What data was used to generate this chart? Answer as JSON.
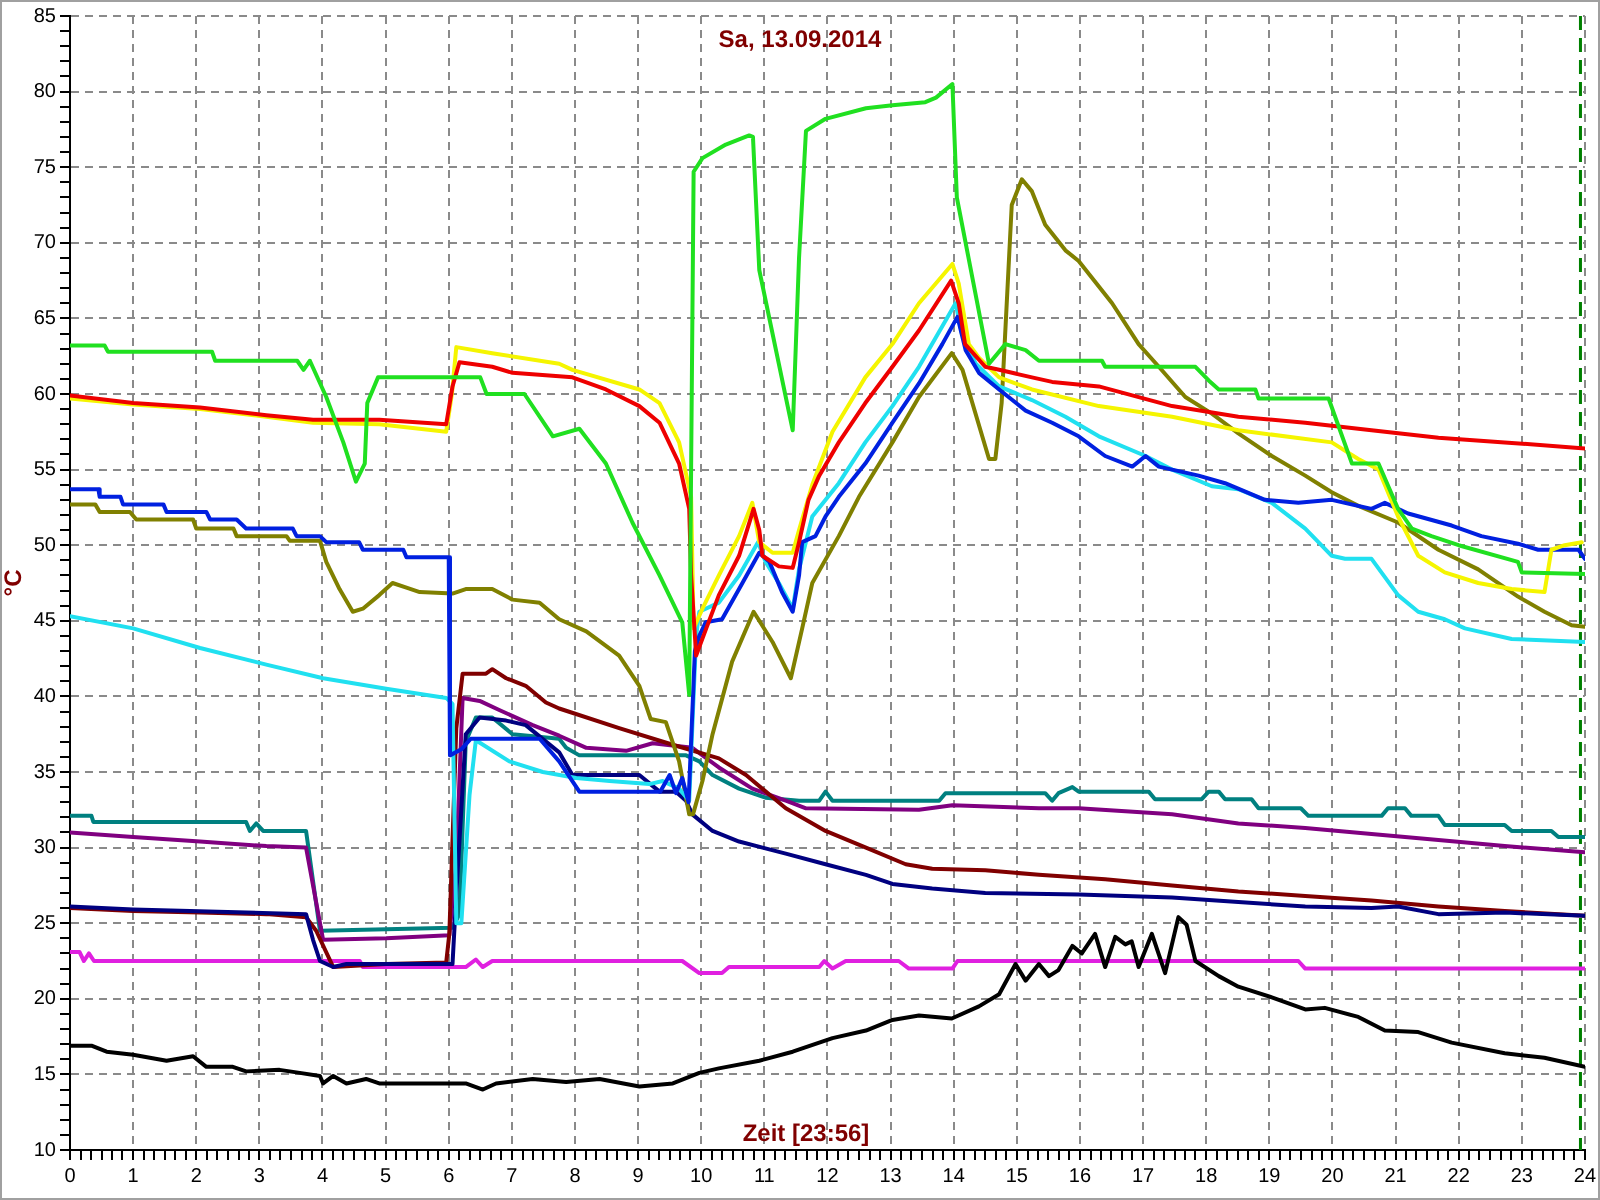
{
  "chart_data": {
    "type": "line",
    "title": "Sa, 13.09.2014",
    "xlabel": "Zeit [23:56]",
    "ylabel": "°C",
    "xlim": [
      0,
      24
    ],
    "ylim": [
      10,
      85
    ],
    "grid": true,
    "xticks": [
      0,
      {
        "value": 0.17,
        "label": null
      },
      {
        "value": 0.33,
        "label": null
      },
      {
        "value": 0.5,
        "label": null
      },
      {
        "value": 0.67,
        "label": null
      },
      {
        "value": 0.83,
        "label": null
      },
      1,
      {
        "value": 1.17,
        "label": null
      },
      {
        "value": 1.33,
        "label": null
      },
      {
        "value": 1.5,
        "label": null
      },
      {
        "value": 1.67,
        "label": null
      },
      {
        "value": 1.83,
        "label": null
      },
      2,
      {
        "value": 2.17,
        "label": null
      },
      {
        "value": 2.33,
        "label": null
      },
      {
        "value": 2.5,
        "label": null
      },
      {
        "value": 2.67,
        "label": null
      },
      {
        "value": 2.83,
        "label": null
      },
      3,
      {
        "value": 3.17,
        "label": null
      },
      {
        "value": 3.33,
        "label": null
      },
      {
        "value": 3.5,
        "label": null
      },
      {
        "value": 3.67,
        "label": null
      },
      {
        "value": 3.83,
        "label": null
      },
      4,
      {
        "value": 4.17,
        "label": null
      },
      {
        "value": 4.33,
        "label": null
      },
      {
        "value": 4.5,
        "label": null
      },
      {
        "value": 4.67,
        "label": null
      },
      {
        "value": 4.83,
        "label": null
      },
      5,
      {
        "value": 5.17,
        "label": null
      },
      {
        "value": 5.33,
        "label": null
      },
      {
        "value": 5.5,
        "label": null
      },
      {
        "value": 5.67,
        "label": null
      },
      {
        "value": 5.83,
        "label": null
      },
      6,
      {
        "value": 6.17,
        "label": null
      },
      {
        "value": 6.33,
        "label": null
      },
      {
        "value": 6.5,
        "label": null
      },
      {
        "value": 6.67,
        "label": null
      },
      {
        "value": 6.83,
        "label": null
      },
      7,
      {
        "value": 7.17,
        "label": null
      },
      {
        "value": 7.33,
        "label": null
      },
      {
        "value": 7.5,
        "label": null
      },
      {
        "value": 7.67,
        "label": null
      },
      {
        "value": 7.83,
        "label": null
      },
      8,
      {
        "value": 8.17,
        "label": null
      },
      {
        "value": 8.33,
        "label": null
      },
      {
        "value": 8.5,
        "label": null
      },
      {
        "value": 8.67,
        "label": null
      },
      {
        "value": 8.83,
        "label": null
      },
      9,
      {
        "value": 9.17,
        "label": null
      },
      {
        "value": 9.33,
        "label": null
      },
      {
        "value": 9.5,
        "label": null
      },
      {
        "value": 9.67,
        "label": null
      },
      {
        "value": 9.83,
        "label": null
      },
      10,
      {
        "value": 10.17,
        "label": null
      },
      {
        "value": 10.33,
        "label": null
      },
      {
        "value": 10.5,
        "label": null
      },
      {
        "value": 10.67,
        "label": null
      },
      {
        "value": 10.83,
        "label": null
      },
      11,
      {
        "value": 11.17,
        "label": null
      },
      {
        "value": 11.33,
        "label": null
      },
      {
        "value": 11.5,
        "label": null
      },
      {
        "value": 11.67,
        "label": null
      },
      {
        "value": 11.83,
        "label": null
      },
      12,
      {
        "value": 12.17,
        "label": null
      },
      {
        "value": 12.33,
        "label": null
      },
      {
        "value": 12.5,
        "label": null
      },
      {
        "value": 12.67,
        "label": null
      },
      {
        "value": 12.83,
        "label": null
      },
      13,
      {
        "value": 13.17,
        "label": null
      },
      {
        "value": 13.33,
        "label": null
      },
      {
        "value": 13.5,
        "label": null
      },
      {
        "value": 13.67,
        "label": null
      },
      {
        "value": 13.83,
        "label": null
      },
      14,
      {
        "value": 14.17,
        "label": null
      },
      {
        "value": 14.33,
        "label": null
      },
      {
        "value": 14.5,
        "label": null
      },
      {
        "value": 14.67,
        "label": null
      },
      {
        "value": 14.83,
        "label": null
      },
      15,
      {
        "value": 15.17,
        "label": null
      },
      {
        "value": 15.33,
        "label": null
      },
      {
        "value": 15.5,
        "label": null
      },
      {
        "value": 15.67,
        "label": null
      },
      {
        "value": 15.83,
        "label": null
      },
      16,
      {
        "value": 16.17,
        "label": null
      },
      {
        "value": 16.33,
        "label": null
      },
      {
        "value": 16.5,
        "label": null
      },
      {
        "value": 16.67,
        "label": null
      },
      {
        "value": 16.83,
        "label": null
      },
      17,
      {
        "value": 17.17,
        "label": null
      },
      {
        "value": 17.33,
        "label": null
      },
      {
        "value": 17.5,
        "label": null
      },
      {
        "value": 17.67,
        "label": null
      },
      {
        "value": 17.83,
        "label": null
      },
      18,
      {
        "value": 18.17,
        "label": null
      },
      {
        "value": 18.33,
        "label": null
      },
      {
        "value": 18.5,
        "label": null
      },
      {
        "value": 18.67,
        "label": null
      },
      {
        "value": 18.83,
        "label": null
      },
      19,
      {
        "value": 19.17,
        "label": null
      },
      {
        "value": 19.33,
        "label": null
      },
      {
        "value": 19.5,
        "label": null
      },
      {
        "value": 19.67,
        "label": null
      },
      {
        "value": 19.83,
        "label": null
      },
      20,
      {
        "value": 20.17,
        "label": null
      },
      {
        "value": 20.33,
        "label": null
      },
      {
        "value": 20.5,
        "label": null
      },
      {
        "value": 20.67,
        "label": null
      },
      {
        "value": 20.83,
        "label": null
      },
      21,
      {
        "value": 21.17,
        "label": null
      },
      {
        "value": 21.33,
        "label": null
      },
      {
        "value": 21.5,
        "label": null
      },
      {
        "value": 21.67,
        "label": null
      },
      {
        "value": 21.83,
        "label": null
      },
      22,
      {
        "value": 22.17,
        "label": null
      },
      {
        "value": 22.33,
        "label": null
      },
      {
        "value": 22.5,
        "label": null
      },
      {
        "value": 22.67,
        "label": null
      },
      {
        "value": 22.83,
        "label": null
      },
      23,
      {
        "value": 23.17,
        "label": null
      },
      {
        "value": 23.33,
        "label": null
      },
      {
        "value": 23.5,
        "label": null
      },
      {
        "value": 23.67,
        "label": null
      },
      {
        "value": 23.83,
        "label": null
      },
      24
    ],
    "yticks": [
      10,
      {
        "value": 11,
        "label": null
      },
      {
        "value": 12,
        "label": null
      },
      {
        "value": 13,
        "label": null
      },
      {
        "value": 14,
        "label": null
      },
      15,
      {
        "value": 16,
        "label": null
      },
      {
        "value": 17,
        "label": null
      },
      {
        "value": 18,
        "label": null
      },
      {
        "value": 19,
        "label": null
      },
      20,
      {
        "value": 21,
        "label": null
      },
      {
        "value": 22,
        "label": null
      },
      {
        "value": 23,
        "label": null
      },
      {
        "value": 24,
        "label": null
      },
      25,
      {
        "value": 26,
        "label": null
      },
      {
        "value": 27,
        "label": null
      },
      {
        "value": 28,
        "label": null
      },
      {
        "value": 29,
        "label": null
      },
      30,
      {
        "value": 31,
        "label": null
      },
      {
        "value": 32,
        "label": null
      },
      {
        "value": 33,
        "label": null
      },
      {
        "value": 34,
        "label": null
      },
      35,
      {
        "value": 36,
        "label": null
      },
      {
        "value": 37,
        "label": null
      },
      {
        "value": 38,
        "label": null
      },
      {
        "value": 39,
        "label": null
      },
      40,
      {
        "value": 41,
        "label": null
      },
      {
        "value": 42,
        "label": null
      },
      {
        "value": 43,
        "label": null
      },
      {
        "value": 44,
        "label": null
      },
      45,
      {
        "value": 46,
        "label": null
      },
      {
        "value": 47,
        "label": null
      },
      {
        "value": 48,
        "label": null
      },
      {
        "value": 49,
        "label": null
      },
      50,
      {
        "value": 51,
        "label": null
      },
      {
        "value": 52,
        "label": null
      },
      {
        "value": 53,
        "label": null
      },
      {
        "value": 54,
        "label": null
      },
      55,
      {
        "value": 56,
        "label": null
      },
      {
        "value": 57,
        "label": null
      },
      {
        "value": 58,
        "label": null
      },
      {
        "value": 59,
        "label": null
      },
      60,
      {
        "value": 61,
        "label": null
      },
      {
        "value": 62,
        "label": null
      },
      {
        "value": 63,
        "label": null
      },
      {
        "value": 64,
        "label": null
      },
      65,
      {
        "value": 66,
        "label": null
      },
      {
        "value": 67,
        "label": null
      },
      {
        "value": 68,
        "label": null
      },
      {
        "value": 69,
        "label": null
      },
      70,
      {
        "value": 71,
        "label": null
      },
      {
        "value": 72,
        "label": null
      },
      {
        "value": 73,
        "label": null
      },
      {
        "value": 74,
        "label": null
      },
      75,
      {
        "value": 76,
        "label": null
      },
      {
        "value": 77,
        "label": null
      },
      {
        "value": 78,
        "label": null
      },
      {
        "value": 79,
        "label": null
      },
      80,
      {
        "value": 81,
        "label": null
      },
      {
        "value": 82,
        "label": null
      },
      {
        "value": 83,
        "label": null
      },
      {
        "value": 84,
        "label": null
      },
      85
    ],
    "ref_lines": [
      {
        "axis": "x",
        "value": 23.93,
        "color": "#008000",
        "line_style": "dashed"
      }
    ],
    "series": [
      {
        "color": "#000000",
        "x": [
          0,
          0.34,
          0.58,
          1.0,
          1.53,
          1.95,
          2.16,
          2.58,
          2.79,
          3.32,
          3.64,
          3.96,
          4.01,
          4.17,
          4.38,
          4.69,
          4.9,
          6.27,
          6.54,
          6.75,
          7.33,
          7.86,
          8.39,
          9.02,
          9.55,
          9.97,
          10.28,
          10.92,
          11.45,
          12.08,
          12.61,
          13.03,
          13.45,
          13.97,
          14.4,
          14.72,
          14.98,
          15.14,
          15.35,
          15.51,
          15.66,
          15.88,
          16.03,
          16.24,
          16.4,
          16.56,
          16.72,
          16.82,
          16.93,
          17.14,
          17.35,
          17.56,
          17.69,
          17.83,
          18.2,
          18.51,
          19.04,
          19.57,
          19.88,
          20.41,
          20.83,
          21.36,
          21.89,
          22.73,
          23.36,
          24
        ],
        "values": [
          16.9,
          16.9,
          16.5,
          16.3,
          15.9,
          16.2,
          15.5,
          15.5,
          15.2,
          15.3,
          15.1,
          14.9,
          14.4,
          14.9,
          14.4,
          14.7,
          14.4,
          14.4,
          14.0,
          14.4,
          14.7,
          14.5,
          14.7,
          14.2,
          14.4,
          15.1,
          15.4,
          15.9,
          16.5,
          17.4,
          17.9,
          18.6,
          18.9,
          18.7,
          19.5,
          20.3,
          22.3,
          21.2,
          22.3,
          21.5,
          21.9,
          23.5,
          23.0,
          24.3,
          22.1,
          24.1,
          23.6,
          23.8,
          22.1,
          24.3,
          21.7,
          25.4,
          24.9,
          22.5,
          21.5,
          20.8,
          20.1,
          19.3,
          19.4,
          18.8,
          17.9,
          17.8,
          17.1,
          16.4,
          16.1,
          15.5
        ]
      },
      {
        "color": "#20e020",
        "x": [
          0,
          0.55,
          0.6,
          2.25,
          2.3,
          3.6,
          3.7,
          3.8,
          4.06,
          4.33,
          4.53,
          4.67,
          4.71,
          4.88,
          6.0,
          6.5,
          6.6,
          7.2,
          7.65,
          8.07,
          8.49,
          8.91,
          9.34,
          9.7,
          9.81,
          9.88,
          10.02,
          10.39,
          10.76,
          10.82,
          10.92,
          11.45,
          11.55,
          11.66,
          11.97,
          12.61,
          13.03,
          13.55,
          13.72,
          13.98,
          14.05,
          14.56,
          14.82,
          15.14,
          15.35,
          16.35,
          16.4,
          17.83,
          18.04,
          18.2,
          18.78,
          18.83,
          19.94,
          20.31,
          20.73,
          21.04,
          21.26,
          21.57,
          22.0,
          22.94,
          23.0,
          24
        ],
        "values": [
          63.2,
          63.2,
          62.8,
          62.8,
          62.2,
          62.2,
          61.6,
          62.2,
          59.8,
          56.8,
          54.2,
          55.4,
          59.4,
          61.1,
          61.1,
          61.1,
          60.0,
          60.0,
          57.2,
          57.7,
          55.4,
          51.5,
          48.0,
          44.9,
          40.1,
          74.7,
          75.6,
          76.5,
          77.1,
          77.0,
          68.2,
          57.6,
          69.0,
          77.4,
          78.2,
          78.9,
          79.1,
          79.3,
          79.6,
          80.5,
          73.0,
          62.0,
          63.3,
          62.9,
          62.2,
          62.2,
          61.8,
          61.8,
          60.9,
          60.3,
          60.3,
          59.7,
          59.7,
          55.4,
          55.4,
          52.4,
          51.1,
          50.6,
          50.0,
          48.9,
          48.2,
          48.1
        ]
      },
      {
        "color": "#ee0000",
        "x": [
          0,
          1.0,
          2.06,
          3.11,
          3.85,
          4.9,
          5.96,
          6.06,
          6.17,
          6.69,
          7.01,
          7.96,
          8.49,
          9.02,
          9.34,
          9.65,
          9.81,
          9.84,
          9.92,
          10.08,
          10.28,
          10.6,
          10.83,
          10.92,
          10.97,
          11.23,
          11.45,
          11.55,
          11.7,
          11.87,
          12.18,
          12.6,
          13.03,
          13.45,
          13.96,
          14.08,
          14.18,
          14.5,
          14.72,
          15.24,
          15.56,
          16.3,
          17.46,
          18.51,
          19.57,
          20.62,
          21.68,
          22.73,
          24
        ],
        "values": [
          59.9,
          59.4,
          59.1,
          58.6,
          58.3,
          58.3,
          58.0,
          60.5,
          62.1,
          61.8,
          61.4,
          61.1,
          60.3,
          59.2,
          58.1,
          55.4,
          52.4,
          48.0,
          42.7,
          44.5,
          46.7,
          49.3,
          52.4,
          51.0,
          49.3,
          48.6,
          48.5,
          50.2,
          53.0,
          54.6,
          56.8,
          59.4,
          61.8,
          64.2,
          67.5,
          66.0,
          63.3,
          61.8,
          61.6,
          61.1,
          60.8,
          60.5,
          59.2,
          58.5,
          58.1,
          57.6,
          57.1,
          56.8,
          56.4
        ]
      },
      {
        "color": "#f5f500",
        "x": [
          0,
          1.0,
          2.06,
          3.11,
          3.85,
          4.9,
          5.96,
          6.05,
          6.12,
          6.69,
          7.75,
          7.96,
          9.02,
          9.34,
          9.65,
          9.84,
          9.88,
          10.02,
          10.28,
          10.6,
          10.81,
          10.92,
          11.13,
          11.45,
          11.55,
          11.76,
          12.08,
          12.6,
          13.03,
          13.45,
          13.98,
          14.08,
          14.24,
          14.4,
          14.72,
          15.24,
          16.3,
          17.46,
          18.51,
          19.99,
          20.41,
          20.73,
          21.04,
          21.36,
          21.78,
          22.31,
          22.84,
          23.36,
          23.47,
          23.68,
          23.95
        ],
        "values": [
          59.7,
          59.3,
          59.0,
          58.5,
          58.1,
          58.0,
          57.5,
          60.0,
          63.1,
          62.7,
          62.0,
          61.6,
          60.3,
          59.4,
          56.8,
          53.2,
          44.5,
          45.8,
          48.0,
          50.6,
          52.8,
          50.2,
          49.5,
          49.5,
          51.0,
          54.0,
          57.5,
          61.1,
          63.3,
          66.0,
          68.6,
          67.3,
          63.3,
          62.4,
          61.1,
          60.3,
          59.2,
          58.5,
          57.6,
          56.8,
          55.7,
          55.0,
          51.9,
          49.3,
          48.2,
          47.5,
          47.1,
          46.9,
          49.7,
          50.0,
          50.2
        ]
      },
      {
        "color": "#0020e0",
        "x": [
          0,
          0.45,
          0.47,
          0.8,
          0.84,
          1.48,
          1.53,
          2.16,
          2.22,
          2.64,
          2.79,
          3.53,
          3.59,
          3.96,
          4.06,
          4.58,
          4.64,
          5.28,
          5.33,
          6.0,
          6.02,
          6.2,
          6.35,
          7.44,
          7.75,
          8.07,
          9.35,
          9.5,
          9.6,
          9.7,
          9.8,
          9.9,
          9.97,
          10.07,
          10.33,
          10.6,
          10.92,
          11.08,
          11.28,
          11.45,
          11.55,
          11.6,
          11.81,
          11.97,
          12.18,
          12.6,
          13.03,
          13.45,
          13.82,
          14.06,
          14.19,
          14.4,
          14.72,
          15.14,
          15.56,
          15.98,
          16.4,
          16.83,
          17.04,
          17.25,
          17.88,
          18.3,
          18.93,
          19.46,
          19.99,
          20.62,
          20.83,
          21.2,
          21.89,
          22.36,
          22.94,
          23.26,
          23.9,
          24
        ],
        "values": [
          53.7,
          53.7,
          53.2,
          53.2,
          52.7,
          52.7,
          52.2,
          52.2,
          51.7,
          51.7,
          51.1,
          51.1,
          50.6,
          50.6,
          50.2,
          50.2,
          49.7,
          49.7,
          49.2,
          49.2,
          36.1,
          36.5,
          37.2,
          37.2,
          35.7,
          33.7,
          33.7,
          34.8,
          33.6,
          34.6,
          33.0,
          43.0,
          44.0,
          44.9,
          45.1,
          47.1,
          49.5,
          48.9,
          46.9,
          45.6,
          48.0,
          50.2,
          50.6,
          51.9,
          53.2,
          55.4,
          58.1,
          60.7,
          63.3,
          65.1,
          62.9,
          61.4,
          60.3,
          58.9,
          58.1,
          57.2,
          55.9,
          55.2,
          55.9,
          55.2,
          54.6,
          54.1,
          53.0,
          52.8,
          53.0,
          52.4,
          52.8,
          52.1,
          51.3,
          50.6,
          50.1,
          49.7,
          49.7,
          49.1
        ]
      },
      {
        "color": "#20e0f0",
        "x": [
          0,
          1.0,
          2.06,
          3.11,
          4.01,
          5.01,
          5.96,
          6.06,
          6.12,
          6.2,
          6.33,
          6.43,
          6.96,
          7.49,
          8.02,
          8.55,
          9.18,
          9.39,
          9.65,
          9.81,
          9.92,
          9.97,
          10.28,
          10.6,
          10.9,
          11.02,
          11.23,
          11.45,
          11.55,
          11.76,
          12.18,
          12.6,
          13.03,
          13.45,
          14.03,
          14.13,
          14.35,
          14.72,
          15.24,
          15.77,
          16.3,
          17.04,
          17.46,
          18.09,
          18.51,
          19.04,
          19.57,
          19.99,
          20.2,
          20.62,
          21.04,
          21.36,
          21.78,
          22.1,
          22.84,
          24
        ],
        "values": [
          45.3,
          44.5,
          43.2,
          42.1,
          41.2,
          40.5,
          39.9,
          39.5,
          25.0,
          25.0,
          33.5,
          37.1,
          35.7,
          35.0,
          34.6,
          34.4,
          34.2,
          34.4,
          33.9,
          33.1,
          44.0,
          45.6,
          46.2,
          48.0,
          50.2,
          48.9,
          47.5,
          45.8,
          48.4,
          51.9,
          54.1,
          56.8,
          59.2,
          61.8,
          66.0,
          64.0,
          62.0,
          60.5,
          59.6,
          58.5,
          57.2,
          55.9,
          55.0,
          53.9,
          53.7,
          52.8,
          51.1,
          49.3,
          49.1,
          49.1,
          46.7,
          45.6,
          45.1,
          44.5,
          43.8,
          43.6
        ]
      },
      {
        "color": "#808000",
        "x": [
          0,
          0.4,
          0.47,
          0.95,
          1.05,
          1.95,
          2.0,
          2.59,
          2.64,
          3.43,
          3.48,
          3.96,
          4.06,
          4.27,
          4.48,
          4.64,
          4.9,
          5.11,
          5.33,
          5.54,
          6.06,
          6.27,
          6.69,
          7.01,
          7.44,
          7.75,
          8.18,
          8.7,
          9.02,
          9.2,
          9.44,
          9.65,
          9.81,
          9.87,
          10.02,
          10.18,
          10.49,
          10.83,
          11.13,
          11.42,
          11.6,
          11.76,
          12.18,
          12.5,
          13.03,
          13.45,
          13.97,
          14.14,
          14.56,
          14.66,
          14.76,
          14.92,
          15.08,
          15.24,
          15.45,
          15.77,
          15.98,
          16.51,
          16.93,
          17.25,
          17.67,
          18.09,
          18.51,
          19.04,
          19.57,
          19.99,
          20.41,
          21.04,
          21.68,
          22.31,
          22.94,
          23.36,
          23.79,
          24
        ],
        "values": [
          52.7,
          52.7,
          52.2,
          52.2,
          51.7,
          51.7,
          51.1,
          51.1,
          50.6,
          50.6,
          50.3,
          50.3,
          48.9,
          47.1,
          45.6,
          45.8,
          46.7,
          47.5,
          47.2,
          46.9,
          46.8,
          47.1,
          47.1,
          46.4,
          46.2,
          45.1,
          44.3,
          42.7,
          40.7,
          38.5,
          38.3,
          35.7,
          32.2,
          32.2,
          34.4,
          37.5,
          42.3,
          45.6,
          43.6,
          41.2,
          44.5,
          47.5,
          50.6,
          53.2,
          56.8,
          59.8,
          62.7,
          61.6,
          55.7,
          55.7,
          59.4,
          72.5,
          74.2,
          73.4,
          71.2,
          69.5,
          68.8,
          66.0,
          63.3,
          61.8,
          59.8,
          58.7,
          57.4,
          55.9,
          54.6,
          53.5,
          52.6,
          51.5,
          49.7,
          48.4,
          46.6,
          45.6,
          44.7,
          44.6
        ]
      },
      {
        "color": "#000080",
        "x": [
          0,
          1.0,
          3.74,
          3.85,
          3.96,
          4.17,
          4.38,
          6.06,
          6.12,
          6.27,
          6.49,
          6.91,
          7.22,
          7.75,
          7.96,
          9.02,
          9.34,
          9.6,
          9.76,
          9.86,
          10.18,
          10.6,
          11.34,
          11.97,
          12.61,
          13.03,
          13.66,
          14.5,
          15.98,
          17.46,
          18.51,
          19.57,
          20.62,
          21.04,
          21.68,
          22.73,
          24
        ],
        "values": [
          26.1,
          25.9,
          25.6,
          23.9,
          22.5,
          22.1,
          22.3,
          22.3,
          26.9,
          37.5,
          38.6,
          38.4,
          38.1,
          36.3,
          34.8,
          34.8,
          33.7,
          33.7,
          33.1,
          32.2,
          31.1,
          30.4,
          29.6,
          28.9,
          28.2,
          27.6,
          27.3,
          27.0,
          26.9,
          26.7,
          26.4,
          26.1,
          26.0,
          26.1,
          25.6,
          25.7,
          25.5
        ]
      },
      {
        "color": "#800000",
        "x": [
          0,
          1.0,
          2.06,
          3.11,
          3.74,
          3.9,
          4.17,
          5.01,
          5.96,
          6.01,
          6.12,
          6.22,
          6.59,
          6.69,
          6.91,
          7.22,
          7.54,
          7.75,
          8.7,
          9.55,
          10.28,
          10.71,
          11.34,
          11.97,
          12.61,
          13.24,
          13.66,
          14.5,
          15.35,
          16.4,
          17.46,
          18.51,
          19.57,
          20.62,
          21.68,
          22.73,
          24
        ],
        "values": [
          26.0,
          25.8,
          25.7,
          25.6,
          25.4,
          24.5,
          22.1,
          22.3,
          22.4,
          24.3,
          37.9,
          41.5,
          41.5,
          41.8,
          41.2,
          40.7,
          39.6,
          39.2,
          37.9,
          36.8,
          35.9,
          34.8,
          32.6,
          31.1,
          30.0,
          28.9,
          28.6,
          28.5,
          28.2,
          27.9,
          27.5,
          27.1,
          26.8,
          26.5,
          26.1,
          25.8,
          25.5
        ]
      },
      {
        "color": "#800080",
        "x": [
          0,
          1.0,
          2.06,
          3.11,
          3.74,
          4.01,
          5.01,
          6.01,
          6.12,
          6.22,
          6.49,
          6.8,
          7.33,
          7.75,
          8.18,
          8.81,
          9.23,
          9.86,
          10.28,
          10.81,
          11.34,
          11.66,
          13.45,
          13.98,
          15.35,
          15.98,
          17.46,
          18.51,
          19.57,
          20.62,
          21.68,
          22.73,
          24
        ],
        "values": [
          31.0,
          30.7,
          30.4,
          30.1,
          30.0,
          23.9,
          24.0,
          24.2,
          29.1,
          39.9,
          39.7,
          39.1,
          38.1,
          37.4,
          36.6,
          36.4,
          36.9,
          36.6,
          35.3,
          33.9,
          33.1,
          32.6,
          32.5,
          32.8,
          32.6,
          32.6,
          32.2,
          31.6,
          31.3,
          30.9,
          30.5,
          30.1,
          29.7
        ]
      },
      {
        "color": "#008080",
        "x": [
          0,
          0.34,
          0.37,
          2.79,
          2.85,
          2.95,
          3.06,
          3.74,
          3.96,
          6.06,
          6.17,
          6.27,
          6.43,
          6.69,
          7.01,
          7.75,
          7.86,
          8.07,
          9.76,
          9.97,
          10.18,
          10.6,
          11.02,
          11.55,
          11.87,
          11.97,
          12.08,
          13.77,
          13.87,
          15.45,
          15.56,
          15.66,
          15.88,
          15.98,
          17.09,
          17.19,
          17.93,
          18.04,
          18.2,
          18.3,
          18.72,
          18.83,
          19.5,
          19.62,
          20.78,
          20.88,
          21.15,
          21.25,
          21.68,
          21.78,
          22.73,
          22.84,
          23.47,
          23.58,
          24
        ],
        "values": [
          32.1,
          32.1,
          31.7,
          31.7,
          31.1,
          31.6,
          31.1,
          31.1,
          24.5,
          24.7,
          25.6,
          37.0,
          38.6,
          38.6,
          37.5,
          37.2,
          36.6,
          36.1,
          36.1,
          35.7,
          34.8,
          33.9,
          33.3,
          33.1,
          33.1,
          33.7,
          33.1,
          33.1,
          33.6,
          33.6,
          33.1,
          33.6,
          34.0,
          33.7,
          33.7,
          33.2,
          33.2,
          33.7,
          33.7,
          33.2,
          33.2,
          32.6,
          32.6,
          32.1,
          32.1,
          32.6,
          32.6,
          32.1,
          32.1,
          31.5,
          31.5,
          31.1,
          31.1,
          30.7,
          30.7
        ]
      },
      {
        "color": "#e020e0",
        "x": [
          0,
          0.15,
          0.22,
          0.3,
          0.38,
          4.59,
          4.64,
          6.27,
          6.43,
          6.54,
          6.69,
          9.7,
          9.97,
          10.33,
          10.44,
          11.87,
          11.95,
          12.08,
          12.29,
          13.13,
          13.29,
          13.98,
          14.06,
          19.46,
          19.57,
          24
        ],
        "values": [
          23.1,
          23.1,
          22.5,
          23.0,
          22.5,
          22.5,
          22.1,
          22.1,
          22.6,
          22.1,
          22.5,
          22.5,
          21.7,
          21.7,
          22.1,
          22.1,
          22.5,
          22.0,
          22.5,
          22.5,
          22.0,
          22.0,
          22.5,
          22.5,
          22.0,
          22.0
        ]
      }
    ]
  }
}
